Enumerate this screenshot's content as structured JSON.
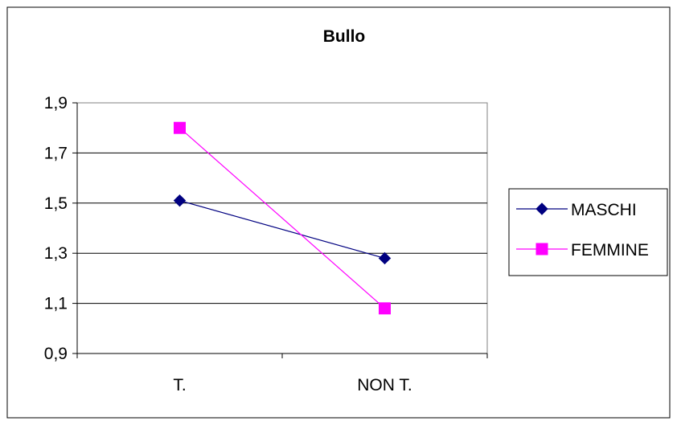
{
  "chart_data": {
    "type": "line",
    "title": "Bullo",
    "xlabel": "",
    "ylabel": "",
    "categories": [
      "T.",
      "NON T."
    ],
    "ylim": [
      0.9,
      1.9
    ],
    "yticks": [
      0.9,
      1.1,
      1.3,
      1.5,
      1.7,
      1.9
    ],
    "ytick_labels": [
      "0,9",
      "1,1",
      "1,3",
      "1,5",
      "1,7",
      "1,9"
    ],
    "grid": true,
    "legend_position": "right",
    "series": [
      {
        "name": "MASCHI",
        "values": [
          1.51,
          1.28
        ],
        "color": "#000080",
        "marker": "diamond"
      },
      {
        "name": "FEMMINE",
        "values": [
          1.8,
          1.08
        ],
        "color": "#ff00ff",
        "marker": "square"
      }
    ]
  }
}
